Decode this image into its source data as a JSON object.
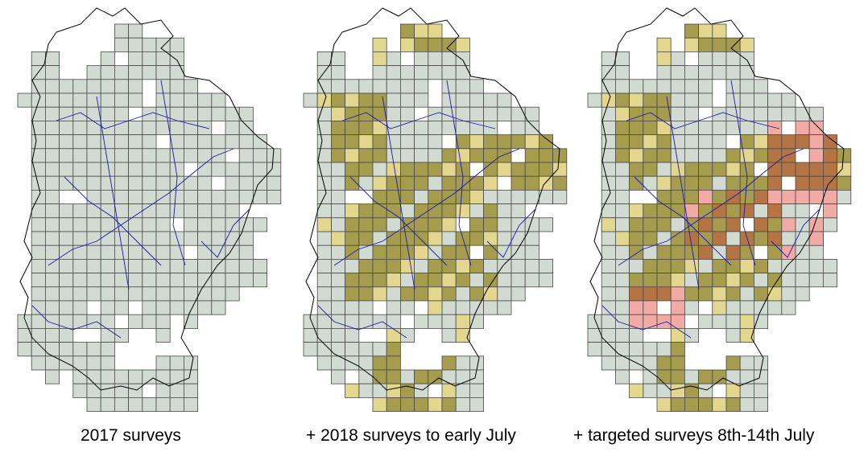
{
  "figure": {
    "panels": [
      {
        "caption": "2017 surveys",
        "layers": [
          "surveyed_2017"
        ]
      },
      {
        "caption": "+ 2018 surveys to early July",
        "layers": [
          "surveyed_2017",
          "surveyed_2018_early",
          "surveyed_both"
        ]
      },
      {
        "caption": "+ targeted surveys 8th-14th July",
        "layers": [
          "surveyed_2017",
          "surveyed_2018_early",
          "surveyed_both",
          "targeted_new",
          "targeted_overlap"
        ]
      }
    ],
    "colors": {
      "surveyed_2017": "#d1dbd2",
      "surveyed_2018_early": "#e3d68e",
      "surveyed_both": "#a59c4e",
      "targeted_new": "#f2aaa5",
      "targeted_overlap": "#b57443",
      "grid_line": "#4a4a4a",
      "boundary": "#000000",
      "rivers": "#1a1aaa"
    }
  }
}
